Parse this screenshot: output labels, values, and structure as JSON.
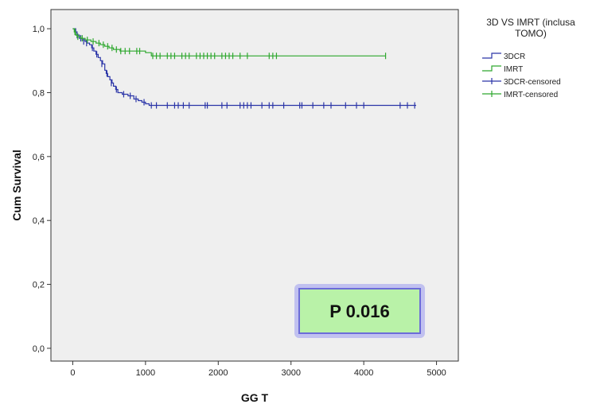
{
  "chart_data": {
    "type": "line",
    "title": "",
    "xlabel": "GG T",
    "ylabel": "Cum Survival",
    "xlim": [
      -300,
      5300
    ],
    "ylim": [
      -0.04,
      1.06
    ],
    "xticks": [
      0,
      1000,
      2000,
      3000,
      4000,
      5000
    ],
    "xtick_labels": [
      "0",
      "1000",
      "2000",
      "3000",
      "4000",
      "5000"
    ],
    "yticks": [
      0.0,
      0.2,
      0.4,
      0.6,
      0.8,
      1.0
    ],
    "ytick_labels": [
      "0,0",
      "0,2",
      "0,4",
      "0,6",
      "0,8",
      "1,0"
    ],
    "grid": false,
    "legend": {
      "title_lines": [
        "3D VS IMRT (inclusa",
        "TOMO)"
      ],
      "position": "right",
      "entries": [
        "3DCR",
        "IMRT",
        "3DCR-censored",
        "IMRT-censored"
      ]
    },
    "annotation": "P 0.016",
    "colors": {
      "3DCR": "#2b35a8",
      "IMRT": "#2ea82e",
      "plot_bg": "#efefef",
      "annotation_bg": "#b9f2a8",
      "annotation_glow": "#7d7de8"
    },
    "series": [
      {
        "name": "3DCR",
        "steps": [
          [
            0,
            1.0
          ],
          [
            40,
            0.99
          ],
          [
            60,
            0.98
          ],
          [
            90,
            0.97
          ],
          [
            130,
            0.965
          ],
          [
            170,
            0.96
          ],
          [
            200,
            0.955
          ],
          [
            230,
            0.95
          ],
          [
            260,
            0.94
          ],
          [
            290,
            0.93
          ],
          [
            320,
            0.92
          ],
          [
            350,
            0.91
          ],
          [
            380,
            0.9
          ],
          [
            410,
            0.89
          ],
          [
            440,
            0.87
          ],
          [
            460,
            0.86
          ],
          [
            480,
            0.85
          ],
          [
            510,
            0.84
          ],
          [
            540,
            0.83
          ],
          [
            560,
            0.82
          ],
          [
            590,
            0.81
          ],
          [
            620,
            0.8
          ],
          [
            680,
            0.795
          ],
          [
            760,
            0.79
          ],
          [
            840,
            0.78
          ],
          [
            900,
            0.775
          ],
          [
            950,
            0.77
          ],
          [
            1000,
            0.765
          ],
          [
            1050,
            0.76
          ],
          [
            4720,
            0.76
          ]
        ],
        "censored": [
          [
            60,
            0.98
          ],
          [
            110,
            0.97
          ],
          [
            150,
            0.96
          ],
          [
            190,
            0.955
          ],
          [
            270,
            0.94
          ],
          [
            330,
            0.92
          ],
          [
            400,
            0.89
          ],
          [
            470,
            0.86
          ],
          [
            530,
            0.83
          ],
          [
            600,
            0.81
          ],
          [
            700,
            0.795
          ],
          [
            790,
            0.79
          ],
          [
            870,
            0.78
          ],
          [
            980,
            0.77
          ],
          [
            1080,
            0.76
          ],
          [
            1150,
            0.76
          ],
          [
            1300,
            0.76
          ],
          [
            1400,
            0.76
          ],
          [
            1450,
            0.76
          ],
          [
            1520,
            0.76
          ],
          [
            1600,
            0.76
          ],
          [
            1820,
            0.76
          ],
          [
            1850,
            0.76
          ],
          [
            2050,
            0.76
          ],
          [
            2120,
            0.76
          ],
          [
            2300,
            0.76
          ],
          [
            2350,
            0.76
          ],
          [
            2400,
            0.76
          ],
          [
            2450,
            0.76
          ],
          [
            2600,
            0.76
          ],
          [
            2700,
            0.76
          ],
          [
            2750,
            0.76
          ],
          [
            2900,
            0.76
          ],
          [
            3120,
            0.76
          ],
          [
            3150,
            0.76
          ],
          [
            3300,
            0.76
          ],
          [
            3450,
            0.76
          ],
          [
            3550,
            0.76
          ],
          [
            3750,
            0.76
          ],
          [
            3900,
            0.76
          ],
          [
            4000,
            0.76
          ],
          [
            4500,
            0.76
          ],
          [
            4600,
            0.76
          ],
          [
            4700,
            0.76
          ]
        ]
      },
      {
        "name": "IMRT",
        "steps": [
          [
            0,
            1.0
          ],
          [
            20,
            0.99
          ],
          [
            40,
            0.98
          ],
          [
            60,
            0.975
          ],
          [
            110,
            0.97
          ],
          [
            170,
            0.965
          ],
          [
            250,
            0.96
          ],
          [
            320,
            0.955
          ],
          [
            380,
            0.95
          ],
          [
            440,
            0.945
          ],
          [
            500,
            0.94
          ],
          [
            560,
            0.935
          ],
          [
            650,
            0.93
          ],
          [
            1000,
            0.925
          ],
          [
            1080,
            0.915
          ],
          [
            4300,
            0.915
          ]
        ],
        "censored": [
          [
            30,
            0.99
          ],
          [
            70,
            0.975
          ],
          [
            130,
            0.97
          ],
          [
            200,
            0.965
          ],
          [
            280,
            0.96
          ],
          [
            360,
            0.955
          ],
          [
            420,
            0.95
          ],
          [
            480,
            0.945
          ],
          [
            540,
            0.94
          ],
          [
            600,
            0.935
          ],
          [
            660,
            0.93
          ],
          [
            720,
            0.93
          ],
          [
            780,
            0.93
          ],
          [
            880,
            0.93
          ],
          [
            920,
            0.93
          ],
          [
            1100,
            0.915
          ],
          [
            1150,
            0.915
          ],
          [
            1200,
            0.915
          ],
          [
            1300,
            0.915
          ],
          [
            1350,
            0.915
          ],
          [
            1400,
            0.915
          ],
          [
            1500,
            0.915
          ],
          [
            1550,
            0.915
          ],
          [
            1600,
            0.915
          ],
          [
            1700,
            0.915
          ],
          [
            1750,
            0.915
          ],
          [
            1800,
            0.915
          ],
          [
            1850,
            0.915
          ],
          [
            1900,
            0.915
          ],
          [
            1950,
            0.915
          ],
          [
            2050,
            0.915
          ],
          [
            2100,
            0.915
          ],
          [
            2150,
            0.915
          ],
          [
            2200,
            0.915
          ],
          [
            2300,
            0.915
          ],
          [
            2400,
            0.915
          ],
          [
            2700,
            0.915
          ],
          [
            2750,
            0.915
          ],
          [
            2800,
            0.915
          ],
          [
            4300,
            0.915
          ]
        ]
      }
    ]
  }
}
